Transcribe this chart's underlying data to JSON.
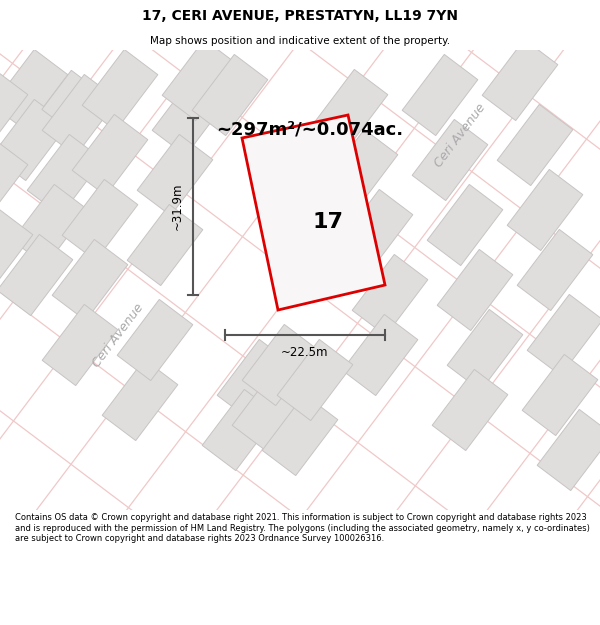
{
  "title": "17, CERI AVENUE, PRESTATYN, LL19 7YN",
  "subtitle": "Map shows position and indicative extent of the property.",
  "area_text": "~297m²/~0.074ac.",
  "label_17": "17",
  "dim_height": "~31.9m",
  "dim_width": "~22.5m",
  "street_label": "Ceri Avenue",
  "street_label2": "Ceri Avenue",
  "footer": "Contains OS data © Crown copyright and database right 2021. This information is subject to Crown copyright and database rights 2023 and is reproduced with the permission of HM Land Registry. The polygons (including the associated geometry, namely x, y co-ordinates) are subject to Crown copyright and database rights 2023 Ordnance Survey 100026316.",
  "map_bg": "#f7f5f5",
  "road_color": "#f0c8c8",
  "building_fill": "#e0dddd",
  "building_edge": "#c8c4c4",
  "plot_color": "#dd0000",
  "plot_fill": "#f8f6f6"
}
